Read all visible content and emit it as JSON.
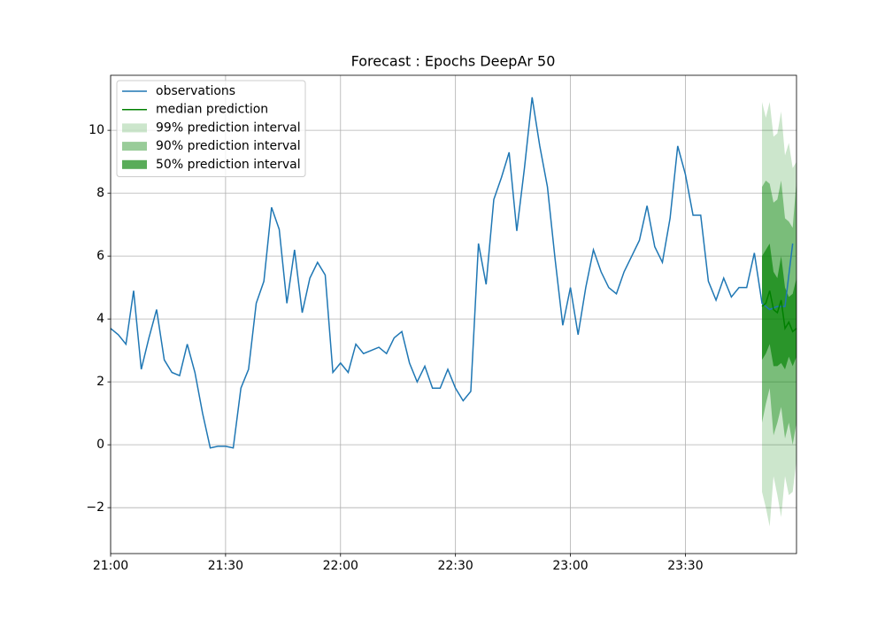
{
  "chart_data": {
    "type": "line",
    "title": "Forecast : Epochs DeepAr 50",
    "xlim": [
      "21:00",
      "23:59"
    ],
    "xticks": [
      "21:00",
      "21:30",
      "22:00",
      "22:30",
      "23:00",
      "23:30"
    ],
    "ylim": [
      -3.46,
      11.75
    ],
    "yticks": [
      {
        "value": -2,
        "label": "−2"
      },
      0,
      2,
      4,
      6,
      8,
      10
    ],
    "grid": true,
    "legend": "upper left",
    "x": [
      "21:00",
      "21:02",
      "21:04",
      "21:06",
      "21:08",
      "21:10",
      "21:12",
      "21:14",
      "21:16",
      "21:18",
      "21:20",
      "21:22",
      "21:24",
      "21:26",
      "21:28",
      "21:30",
      "21:32",
      "21:34",
      "21:36",
      "21:38",
      "21:40",
      "21:42",
      "21:44",
      "21:46",
      "21:48",
      "21:50",
      "21:52",
      "21:54",
      "21:56",
      "21:58",
      "22:00",
      "22:02",
      "22:04",
      "22:06",
      "22:08",
      "22:10",
      "22:12",
      "22:14",
      "22:16",
      "22:18",
      "22:20",
      "22:22",
      "22:24",
      "22:26",
      "22:28",
      "22:30",
      "22:32",
      "22:34",
      "22:36",
      "22:38",
      "22:40",
      "22:42",
      "22:44",
      "22:46",
      "22:48",
      "22:50",
      "22:52",
      "22:54",
      "22:56",
      "22:58",
      "23:00",
      "23:02",
      "23:04",
      "23:06",
      "23:08",
      "23:10",
      "23:12",
      "23:14",
      "23:16",
      "23:18",
      "23:20",
      "23:22",
      "23:24",
      "23:26",
      "23:28",
      "23:30",
      "23:32",
      "23:34",
      "23:36",
      "23:38",
      "23:40",
      "23:42",
      "23:44",
      "23:46",
      "23:48",
      "23:50",
      "23:52",
      "23:54",
      "23:56",
      "23:58"
    ],
    "series": [
      {
        "name": "observations",
        "color": "#1f77b4",
        "values": [
          3.7,
          3.5,
          3.2,
          4.9,
          2.4,
          3.4,
          4.3,
          2.7,
          2.3,
          2.2,
          3.2,
          2.3,
          1.0,
          -0.1,
          -0.05,
          -0.05,
          -0.1,
          1.8,
          2.4,
          4.5,
          5.2,
          7.55,
          6.85,
          4.5,
          6.2,
          4.2,
          5.3,
          5.8,
          5.4,
          2.3,
          2.6,
          2.3,
          3.2,
          2.9,
          3.0,
          3.1,
          2.9,
          3.4,
          3.6,
          2.6,
          2.0,
          2.5,
          1.8,
          1.8,
          2.4,
          1.8,
          1.4,
          1.7,
          6.4,
          5.1,
          7.8,
          8.5,
          9.3,
          6.8,
          8.8,
          11.05,
          9.5,
          8.2,
          5.9,
          3.8,
          5.0,
          3.5,
          5.0,
          6.2,
          5.5,
          5.0,
          4.8,
          5.5,
          6.0,
          6.5,
          7.6,
          6.3,
          5.8,
          7.2,
          9.5,
          8.6,
          7.3,
          7.3,
          5.2,
          4.6,
          5.3,
          4.7,
          5.0,
          5.0,
          6.1,
          4.5,
          4.3,
          4.4,
          4.4,
          6.4
        ]
      }
    ],
    "forecast_x": [
      "23:50",
      "23:51",
      "23:52",
      "23:53",
      "23:54",
      "23:55",
      "23:56",
      "23:57",
      "23:58",
      "23:59"
    ],
    "median": {
      "name": "median prediction",
      "color": "#008000",
      "values": [
        4.4,
        4.5,
        4.9,
        4.3,
        4.2,
        4.6,
        3.7,
        3.9,
        3.6,
        3.7
      ]
    },
    "bands": [
      {
        "name": "99% prediction interval",
        "color": "#008000",
        "alpha": 0.2,
        "lower": [
          -1.5,
          -2.0,
          -2.6,
          -1.0,
          -1.6,
          -2.3,
          -1.0,
          -1.6,
          -1.5,
          -0.5
        ],
        "upper": [
          10.9,
          10.4,
          10.9,
          9.8,
          9.9,
          10.6,
          9.2,
          9.6,
          8.8,
          9.0
        ]
      },
      {
        "name": "90% prediction interval",
        "color": "#008000",
        "alpha": 0.4,
        "lower": [
          0.7,
          1.3,
          1.8,
          0.3,
          0.7,
          1.2,
          0.2,
          0.7,
          0.0,
          0.7
        ],
        "upper": [
          8.2,
          8.4,
          8.3,
          7.7,
          7.8,
          8.4,
          7.2,
          7.1,
          6.9,
          8.4
        ]
      },
      {
        "name": "50% prediction interval",
        "color": "#008000",
        "alpha": 0.65,
        "lower": [
          2.7,
          2.9,
          3.2,
          2.5,
          2.5,
          2.6,
          2.4,
          2.8,
          2.5,
          2.8
        ],
        "upper": [
          6.0,
          6.2,
          6.4,
          5.5,
          5.3,
          6.0,
          5.0,
          4.7,
          4.8,
          5.3
        ]
      }
    ]
  }
}
